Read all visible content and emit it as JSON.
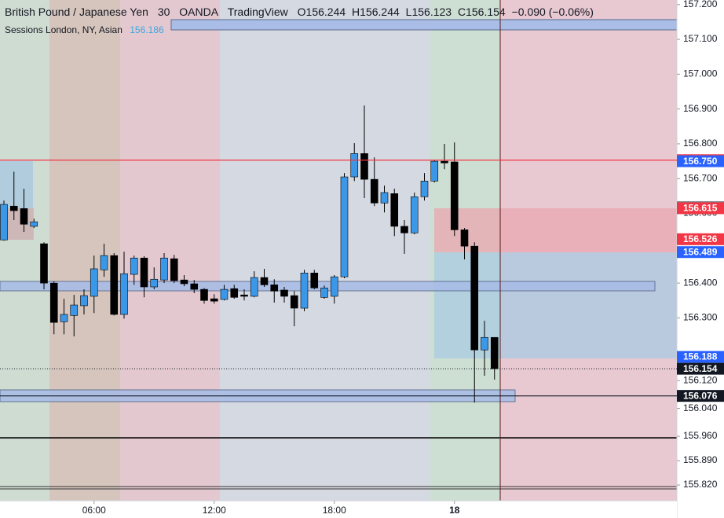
{
  "header": {
    "symbol": "British Pound / Japanese Yen",
    "interval": "30",
    "exchange": "OANDA",
    "source": "TradingView",
    "ohlc_letters": [
      "O",
      "H",
      "L",
      "C"
    ],
    "change": "−0.090 (−0.06%)",
    "indicator": "Sessions London, NY, Asian",
    "indicator_value": "156.186"
  },
  "chart_data": {
    "type": "candlestick",
    "x": [
      "01:30",
      "02:00",
      "02:30",
      "03:00",
      "03:30",
      "04:00",
      "04:30",
      "05:00",
      "05:30",
      "06:00",
      "06:30",
      "07:00",
      "07:30",
      "08:00",
      "08:30",
      "09:00",
      "09:30",
      "10:00",
      "10:30",
      "11:00",
      "11:30",
      "12:00",
      "12:30",
      "13:00",
      "13:30",
      "14:00",
      "14:30",
      "15:00",
      "15:30",
      "16:00",
      "16:30",
      "17:00",
      "17:30",
      "18:00",
      "18:30",
      "19:00",
      "19:30",
      "20:00",
      "20:30",
      "21:00",
      "21:30",
      "22:00",
      "22:30",
      "23:00",
      "23:30",
      "00:00",
      "00:30",
      "01:00",
      "01:30",
      "02:00"
    ],
    "open": [
      156.524,
      156.621,
      156.614,
      156.563,
      156.513,
      156.4,
      156.289,
      156.307,
      156.335,
      156.362,
      156.438,
      156.479,
      156.31,
      156.425,
      156.472,
      156.389,
      156.409,
      156.47,
      156.409,
      156.398,
      156.382,
      156.355,
      156.353,
      156.384,
      156.366,
      156.362,
      156.416,
      156.395,
      156.38,
      156.364,
      156.328,
      156.429,
      156.359,
      156.362,
      156.418,
      156.705,
      156.772,
      156.698,
      156.63,
      156.657,
      156.563,
      156.544,
      156.648,
      156.693,
      156.75,
      156.748,
      156.553,
      156.506,
      156.208,
      156.244
    ],
    "high": [
      156.637,
      156.72,
      156.671,
      156.585,
      156.517,
      156.405,
      156.355,
      156.366,
      156.382,
      156.479,
      156.513,
      156.486,
      156.49,
      156.479,
      156.477,
      156.445,
      156.486,
      156.481,
      156.423,
      156.409,
      156.386,
      156.368,
      156.395,
      156.395,
      156.382,
      156.434,
      156.441,
      156.411,
      156.389,
      156.377,
      156.438,
      156.438,
      156.393,
      156.423,
      156.716,
      156.802,
      156.91,
      156.761,
      156.68,
      156.671,
      156.581,
      156.66,
      156.716,
      156.754,
      156.8,
      156.804,
      156.558,
      156.517,
      156.292,
      156.244
    ],
    "low": [
      156.522,
      156.581,
      156.547,
      156.558,
      156.382,
      156.253,
      156.253,
      156.247,
      156.31,
      156.314,
      156.418,
      156.307,
      156.298,
      156.395,
      156.359,
      156.382,
      156.4,
      156.4,
      156.391,
      156.371,
      156.341,
      156.341,
      156.35,
      156.355,
      156.35,
      156.359,
      156.389,
      156.344,
      156.344,
      156.276,
      156.319,
      156.382,
      156.355,
      156.341,
      156.414,
      156.693,
      156.644,
      156.621,
      156.603,
      156.535,
      156.484,
      156.54,
      156.637,
      156.689,
      156.727,
      156.535,
      156.468,
      156.057,
      156.134,
      156.123
    ],
    "close": [
      156.626,
      156.608,
      156.569,
      156.576,
      156.4,
      156.287,
      156.31,
      156.337,
      156.364,
      156.441,
      156.479,
      156.31,
      156.427,
      156.472,
      156.389,
      156.411,
      156.472,
      156.407,
      156.398,
      156.382,
      156.35,
      156.348,
      156.382,
      156.359,
      156.362,
      156.416,
      156.395,
      156.377,
      156.362,
      156.328,
      156.429,
      156.386,
      156.386,
      156.418,
      156.705,
      156.772,
      156.698,
      156.63,
      156.66,
      156.563,
      156.544,
      156.648,
      156.693,
      156.75,
      156.745,
      156.553,
      156.506,
      156.208,
      156.244,
      156.154
    ],
    "up_color": "#3b98e8",
    "down_color": "#000000",
    "wick_color": "#000000",
    "ylim": [
      155.775,
      157.213
    ],
    "yticks": [
      {
        "value": 157.2,
        "label": "157.200"
      },
      {
        "value": 157.1,
        "label": "157.100"
      },
      {
        "value": 157.0,
        "label": "157.000"
      },
      {
        "value": 156.9,
        "label": "156.900"
      },
      {
        "value": 156.8,
        "label": "156.800"
      },
      {
        "value": 156.7,
        "label": "156.700"
      },
      {
        "value": 156.6,
        "label": "156.600"
      },
      {
        "value": 156.4,
        "label": "156.400"
      },
      {
        "value": 156.3,
        "label": "156.300"
      },
      {
        "value": 156.12,
        "label": "156.120"
      },
      {
        "value": 156.04,
        "label": "156.040"
      },
      {
        "value": 155.96,
        "label": "155.960"
      },
      {
        "value": 155.89,
        "label": "155.890"
      },
      {
        "value": 155.82,
        "label": "155.820"
      }
    ],
    "xticks": [
      "06:00",
      "12:00",
      "18:00",
      {
        "value": "00:00",
        "label": "18"
      }
    ],
    "price_tags": [
      {
        "value": 156.753,
        "color": "#f23645",
        "line": true
      },
      {
        "value": 156.75,
        "label": "156.750",
        "color": "#2962ff"
      },
      {
        "value": 156.618,
        "color": "#787b86"
      },
      {
        "value": 156.615,
        "color": "#f23645"
      },
      {
        "value": 156.526,
        "color": "#f23645"
      },
      {
        "value": 156.489,
        "color": "#2962ff"
      },
      {
        "value": 156.188,
        "color": "#2962ff"
      },
      {
        "value": 156.076,
        "color": "#131722",
        "line": true
      }
    ],
    "last_price_color": "#131722"
  }
}
